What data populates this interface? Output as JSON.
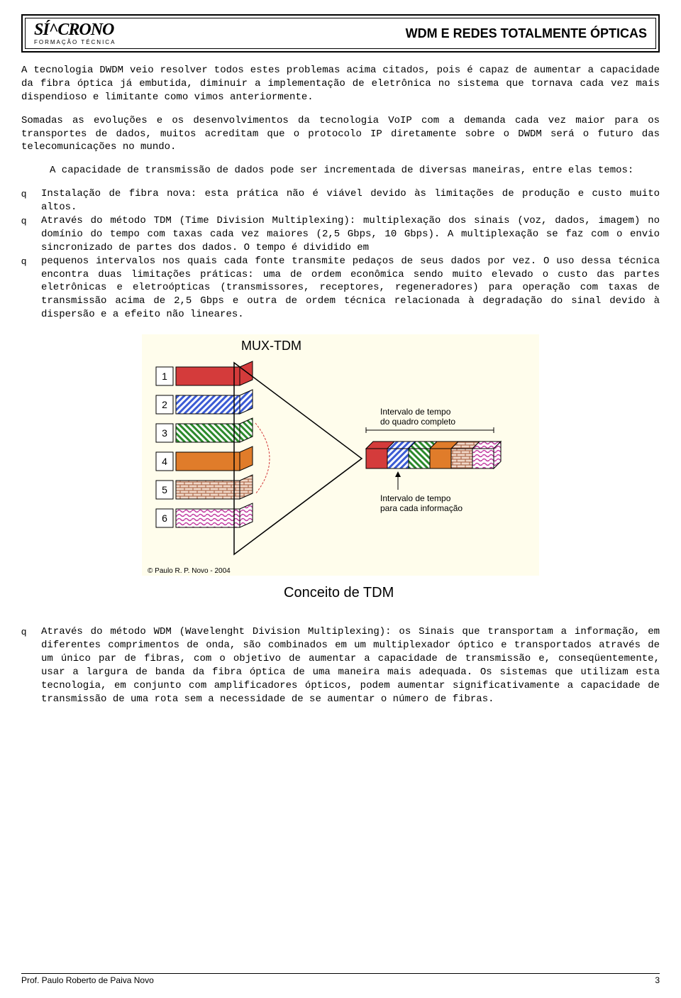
{
  "header": {
    "logo_main": "SÍ^CRONO",
    "logo_sub": "FORMAÇÃO TÉCNICA",
    "title": "WDM E REDES TOTALMENTE ÓPTICAS"
  },
  "para1": "A tecnologia DWDM veio resolver todos estes problemas acima citados, pois é capaz de aumentar a capacidade da fibra óptica já embutida, diminuir a implementação de eletrônica no sistema que tornava cada vez mais dispendioso e limitante como vimos anteriormente.",
  "para2": "Somadas as evoluções e os desenvolvimentos da tecnologia VoIP com a demanda cada vez maior para os transportes de dados, muitos acreditam que o protocolo IP diretamente sobre o DWDM será o futuro das telecomunicações no mundo.",
  "para3": "A capacidade de transmissão de dados pode ser incrementada de diversas maneiras, entre elas temos:",
  "bullet": "q",
  "item1": "Instalação de fibra nova: esta prática não é viável devido às limitações de produção e custo muito altos.",
  "item2": "Através do método TDM (Time Division Multiplexing): multiplexação dos sinais (voz, dados, imagem) no domínio do tempo com taxas cada vez maiores (2,5 Gbps, 10 Gbps). A multiplexação se faz com o envio sincronizado de partes dos dados. O tempo é dividido em",
  "item3": "pequenos intervalos nos quais cada fonte transmite pedaços de seus dados por vez. O uso dessa técnica encontra duas limitações práticas: uma de ordem econômica sendo muito elevado o custo das partes eletrônicas e eletroópticas (transmissores, receptores, regeneradores) para operação com taxas de transmissão acima de 2,5 Gbps e outra de ordem técnica relacionada à degradação do sinal devido à dispersão e a efeito não lineares.",
  "item4": "Através do método WDM (Wavelenght Division Multiplexing): os Sinais que transportam a informação, em diferentes comprimentos de onda, são combinados em um multiplexador óptico e transportados através de um único par de fibras, com o objetivo de aumentar a capacidade de transmissão e, conseqüentemente, usar a largura de banda da fibra óptica de uma maneira mais adequada. Os sistemas que utilizam esta tecnologia, em conjunto com amplificadores ópticos, podem aumentar significativamente a capacidade de transmissão de uma rota sem a necessidade de se aumentar o número de fibras.",
  "footer": {
    "author": "Prof. Paulo Roberto de Paiva Novo",
    "page": "3"
  },
  "diagram": {
    "title": "MUX-TDM",
    "caption": "Conceito de TDM",
    "copyright": "© Paulo R. P. Novo - 2004",
    "label_full": "Intervalo de tempo do quadro completo",
    "label_slot": "Intervalo de tempo para cada informação",
    "channels": [
      {
        "num": "1",
        "fill": "#d43b3b"
      },
      {
        "num": "2",
        "fill": "url(#hatchBlue)"
      },
      {
        "num": "3",
        "fill": "url(#hatchGreen)"
      },
      {
        "num": "4",
        "fill": "#e07c2a"
      },
      {
        "num": "5",
        "fill": "url(#brick)"
      },
      {
        "num": "6",
        "fill": "url(#waveMag)"
      }
    ],
    "colors": {
      "bg": "#fffdec",
      "border": "#000000",
      "text": "#000000",
      "red": "#d43b3b",
      "blue": "#3b5bd4",
      "green": "#2c8a2c",
      "orange": "#e07c2a",
      "brick": "#a35a3a",
      "magenta": "#c23ba0"
    },
    "font_title": 18,
    "font_label": 12,
    "font_caption": 20,
    "font_copy": 10
  }
}
